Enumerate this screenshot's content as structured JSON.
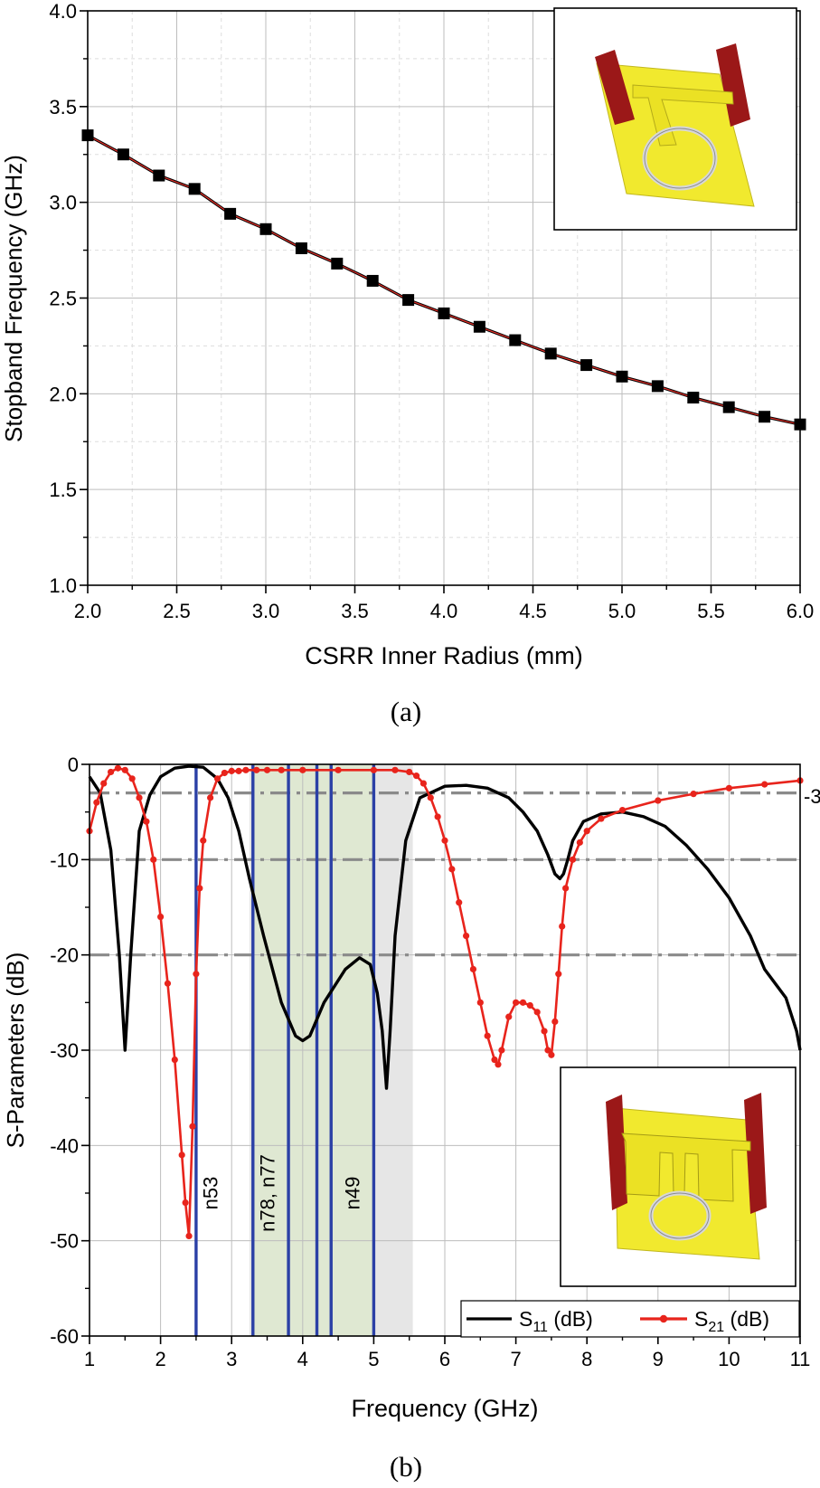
{
  "chart_data": [
    {
      "type": "line",
      "panel_label": "(a)",
      "title": "",
      "xlabel": "CSRR Inner Radius (mm)",
      "ylabel": "Stopband Frequency (GHz)",
      "xlim": [
        2.0,
        6.0
      ],
      "ylim": [
        1.0,
        4.0
      ],
      "xticks": [
        "2.0",
        "2.5",
        "3.0",
        "3.5",
        "4.0",
        "4.5",
        "5.0",
        "5.5",
        "6.0"
      ],
      "yticks": [
        "1.0",
        "1.5",
        "2.0",
        "2.5",
        "3.0",
        "3.5",
        "4.0"
      ],
      "grid": true,
      "series": [
        {
          "name": "Stopband frequency",
          "color": "#000000",
          "fit_color": "#e8312a",
          "marker": "square",
          "x": [
            2.0,
            2.2,
            2.4,
            2.6,
            2.8,
            3.0,
            3.2,
            3.4,
            3.6,
            3.8,
            4.0,
            4.2,
            4.4,
            4.6,
            4.8,
            5.0,
            5.2,
            5.4,
            5.6,
            5.8,
            6.0
          ],
          "y": [
            3.35,
            3.25,
            3.14,
            3.07,
            2.94,
            2.86,
            2.76,
            2.68,
            2.59,
            2.49,
            2.42,
            2.35,
            2.28,
            2.21,
            2.15,
            2.09,
            2.04,
            1.98,
            1.93,
            1.88,
            1.84
          ]
        }
      ],
      "inset": "3D model of the filter unit cell with a single CSRR"
    },
    {
      "type": "line",
      "panel_label": "(b)",
      "title": "",
      "xlabel": "Frequency (GHz)",
      "ylabel": "S-Parameters (dB)",
      "xlim": [
        1,
        11
      ],
      "ylim": [
        -60,
        0
      ],
      "xticks": [
        "1",
        "2",
        "3",
        "4",
        "5",
        "6",
        "7",
        "8",
        "9",
        "10",
        "11"
      ],
      "yticks": [
        "0",
        "-10",
        "-20",
        "-30",
        "-40",
        "-50",
        "-60"
      ],
      "grid": true,
      "reference_lines": [
        -3,
        -10,
        -20
      ],
      "reference_label": "-3",
      "band_lines": [
        2.5,
        3.3,
        3.8,
        4.2,
        4.4,
        5.0
      ],
      "band_labels": [
        {
          "text": "n53",
          "x": 2.8
        },
        {
          "text": "n78, n77",
          "x": 3.6
        },
        {
          "text": "n49",
          "x": 4.8
        }
      ],
      "shaded_bands": [
        {
          "x0": 3.3,
          "x1": 5.0,
          "color": "#dfe8d2"
        },
        {
          "x0": 3.25,
          "x1": 5.55,
          "color": "#e6e6e6"
        }
      ],
      "legend_position": "bottom-right",
      "series": [
        {
          "name": "S11 (dB)",
          "legend_main": "S",
          "legend_sub": "11",
          "legend_tail": " (dB)",
          "color": "#000000",
          "marker": "none",
          "x": [
            1.0,
            1.15,
            1.3,
            1.42,
            1.5,
            1.58,
            1.7,
            1.85,
            2.0,
            2.2,
            2.4,
            2.6,
            2.8,
            2.95,
            3.1,
            3.25,
            3.45,
            3.7,
            3.9,
            4.0,
            4.1,
            4.3,
            4.6,
            4.8,
            4.95,
            5.05,
            5.12,
            5.18,
            5.23,
            5.3,
            5.45,
            5.65,
            6.0,
            6.3,
            6.6,
            6.9,
            7.1,
            7.3,
            7.45,
            7.55,
            7.62,
            7.67,
            7.73,
            7.8,
            7.95,
            8.2,
            8.5,
            8.8,
            9.1,
            9.4,
            9.7,
            10.0,
            10.3,
            10.5,
            10.65,
            10.8,
            10.95,
            11.0
          ],
          "y": [
            -1.3,
            -3,
            -9,
            -20,
            -30,
            -20,
            -7,
            -3.2,
            -1.3,
            -0.4,
            -0.2,
            -0.3,
            -1.5,
            -3.5,
            -7,
            -12,
            -18,
            -25,
            -28.5,
            -29,
            -28.5,
            -25,
            -21.5,
            -20.3,
            -21,
            -24,
            -28,
            -34,
            -28,
            -18,
            -8,
            -3.5,
            -2.3,
            -2.2,
            -2.5,
            -3.5,
            -5,
            -7,
            -9.5,
            -11.5,
            -12,
            -11.5,
            -10,
            -8,
            -6,
            -5.2,
            -5,
            -5.5,
            -6.5,
            -8.5,
            -11,
            -14,
            -18,
            -21.5,
            -23,
            -24.5,
            -28,
            -30
          ]
        },
        {
          "name": "S21 (dB)",
          "legend_main": "S",
          "legend_sub": "21",
          "legend_tail": " (dB)",
          "color": "#e8241c",
          "marker": "circle",
          "x": [
            1.0,
            1.1,
            1.2,
            1.3,
            1.4,
            1.5,
            1.6,
            1.7,
            1.8,
            1.9,
            2.0,
            2.1,
            2.2,
            2.3,
            2.35,
            2.4,
            2.45,
            2.5,
            2.55,
            2.6,
            2.7,
            2.8,
            2.9,
            3.0,
            3.1,
            3.2,
            3.35,
            3.5,
            3.7,
            4.0,
            4.5,
            5.0,
            5.3,
            5.5,
            5.6,
            5.7,
            5.8,
            5.9,
            6.0,
            6.1,
            6.2,
            6.3,
            6.4,
            6.5,
            6.6,
            6.7,
            6.75,
            6.8,
            6.9,
            7.0,
            7.1,
            7.2,
            7.3,
            7.4,
            7.45,
            7.5,
            7.55,
            7.6,
            7.65,
            7.7,
            7.8,
            7.9,
            8.0,
            8.2,
            8.5,
            9.0,
            9.5,
            10.0,
            10.5,
            11.0
          ],
          "y": [
            -7,
            -4,
            -2,
            -0.8,
            -0.4,
            -0.6,
            -1.5,
            -3.5,
            -6,
            -10,
            -16,
            -23,
            -31,
            -41,
            -46,
            -49.5,
            -38,
            -22,
            -13,
            -8,
            -3.5,
            -1.5,
            -0.9,
            -0.7,
            -0.7,
            -0.6,
            -0.6,
            -0.6,
            -0.6,
            -0.6,
            -0.6,
            -0.6,
            -0.6,
            -0.8,
            -1.2,
            -2,
            -3.5,
            -5.5,
            -8,
            -11,
            -14.5,
            -18,
            -21.5,
            -25,
            -28.5,
            -31,
            -31.5,
            -30,
            -26.5,
            -25,
            -25,
            -25.3,
            -26,
            -28,
            -30,
            -30.5,
            -27,
            -22,
            -17,
            -13,
            -10,
            -8.2,
            -7,
            -5.7,
            -4.8,
            -3.8,
            -3.1,
            -2.5,
            -2.1,
            -1.7
          ]
        }
      ],
      "inset": "3D model of the filter unit cell with CSRR and stepped slots"
    }
  ]
}
